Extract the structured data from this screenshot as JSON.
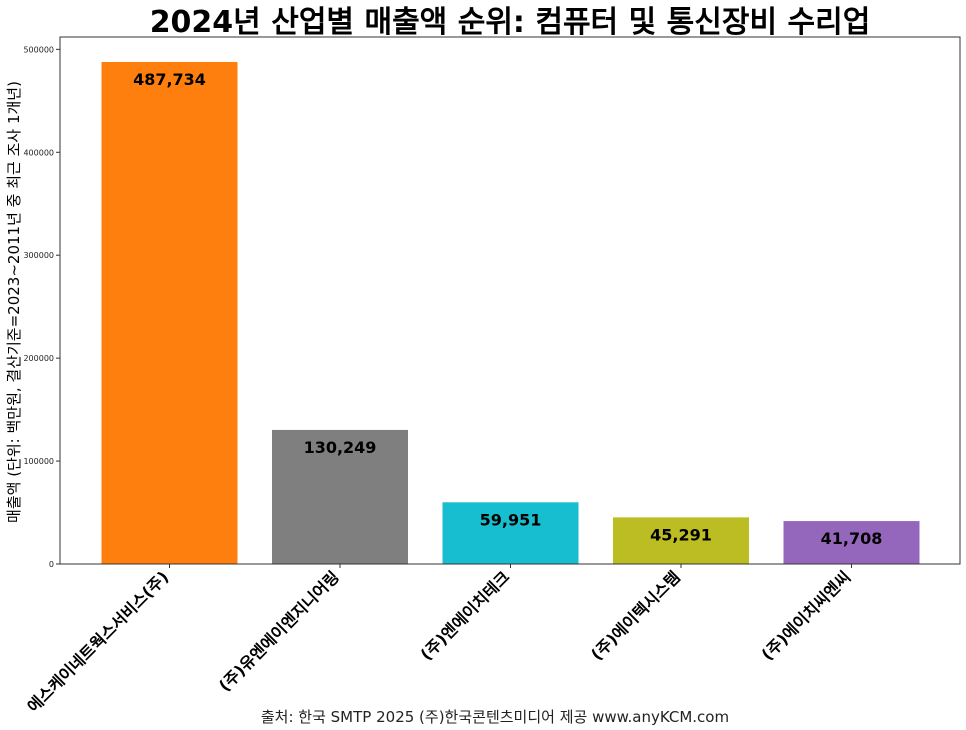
{
  "chart_data": {
    "type": "bar",
    "title": "2024년 산업별 매출액 순위: 컴퓨터 및 통신장비 수리업",
    "ylabel": "매출액 (단위: 백만원, 결산기준=2023~2011년 중 최근 조사 1개년)",
    "xlabel": "",
    "categories": [
      "에스케이네트웍스서비스(주)",
      "(주)유엔에이엔지니어링",
      "(주)엔에이치테크",
      "(주)에이텍시스템",
      "(주)에이치씨엔씨"
    ],
    "values": [
      487734,
      130249,
      59951,
      45291,
      41708
    ],
    "value_labels": [
      "487,734",
      "130,249",
      "59,951",
      "45,291",
      "41,708"
    ],
    "colors": [
      "#ff7f0e",
      "#7f7f7f",
      "#17becf",
      "#bcbd22",
      "#9467bd"
    ],
    "ylim": [
      0,
      512000
    ],
    "yticks": [
      0,
      100000,
      200000,
      300000,
      400000,
      500000
    ],
    "ytick_labels": [
      "0",
      "100000",
      "200000",
      "300000",
      "400000",
      "500000"
    ],
    "grid": false,
    "source": "출처: 한국 SMTP 2025  (주)한국콘텐츠미디어 제공  www.anyKCM.com"
  }
}
